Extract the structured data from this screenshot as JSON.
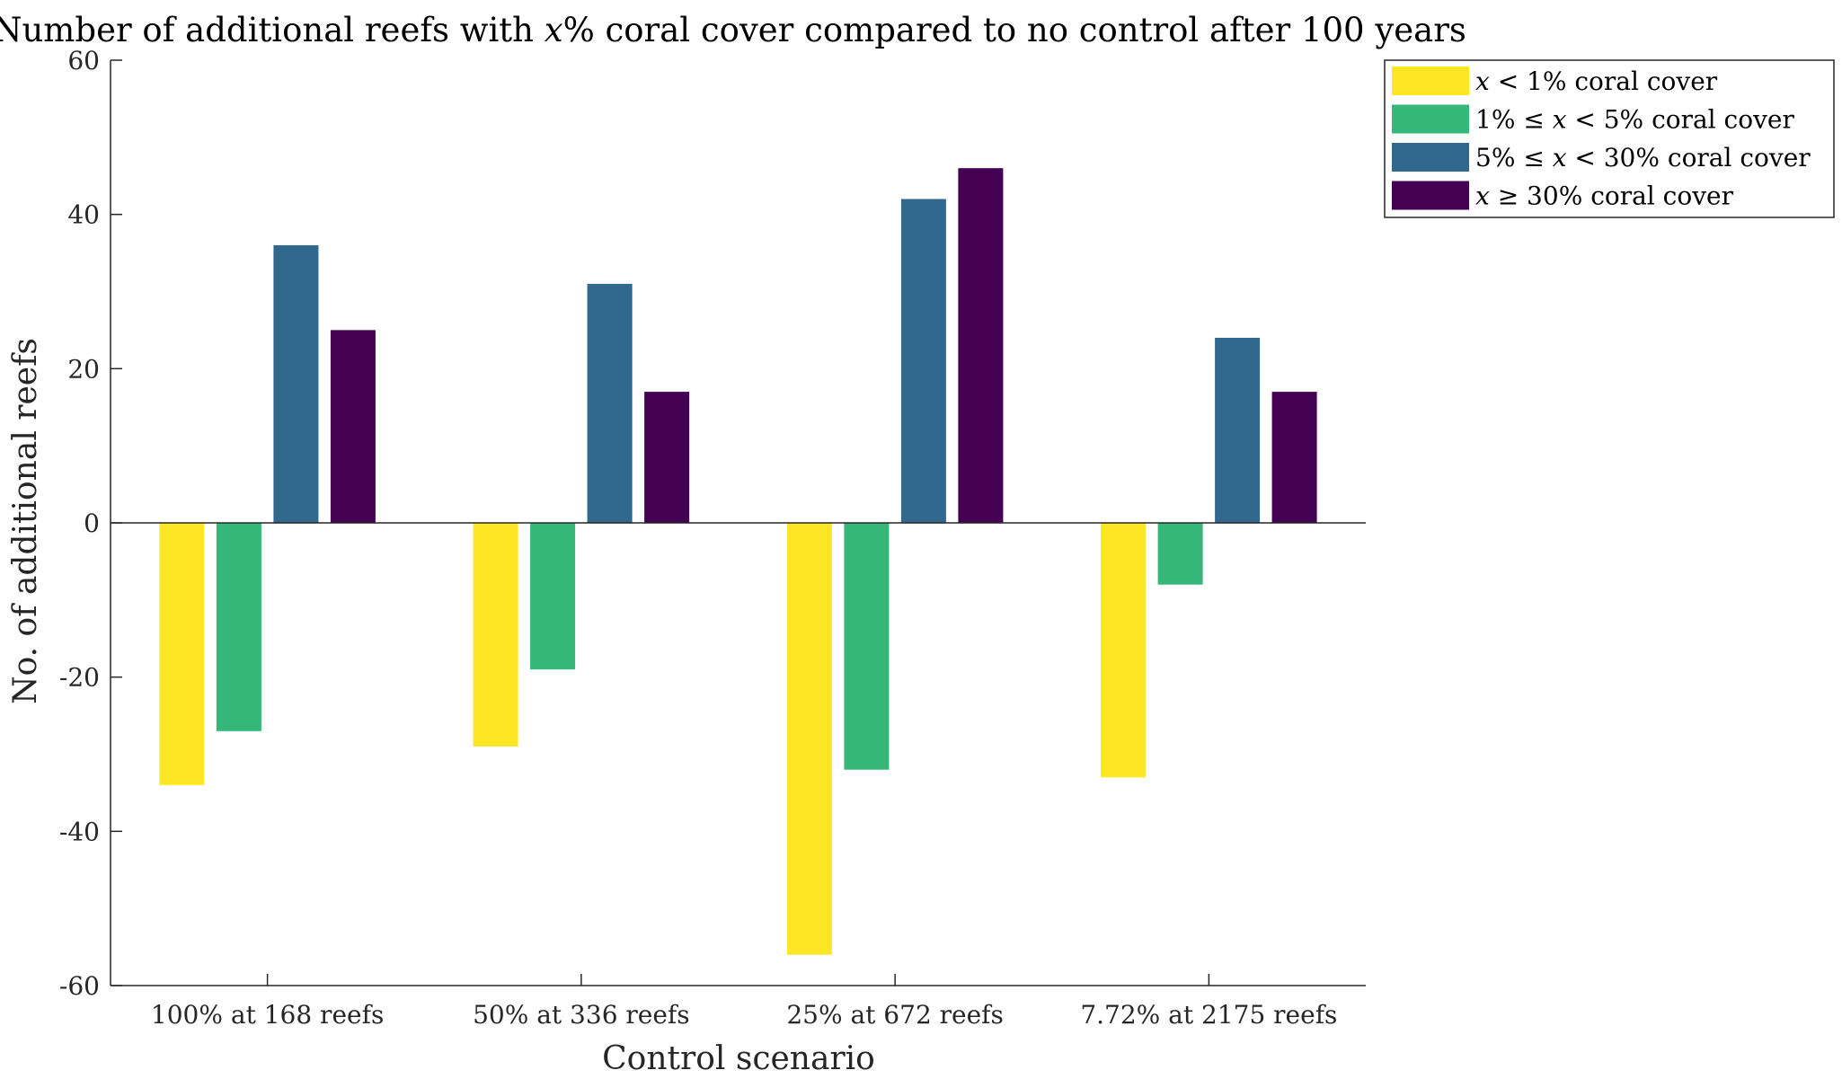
{
  "chart_data": {
    "type": "bar",
    "title": "Number of additional reefs with x% coral cover compared to no control after 100 years",
    "xlabel": "Control scenario",
    "ylabel": "No. of additional reefs",
    "ylim": [
      -60,
      60
    ],
    "yticks": [
      -60,
      -40,
      -20,
      0,
      20,
      40,
      60
    ],
    "categories": [
      "100% at 168 reefs",
      "50% at 336 reefs",
      "25% at 672 reefs",
      "7.72% at 2175 reefs"
    ],
    "series": [
      {
        "name": "x < 1% coral cover",
        "color": "#fde725",
        "values": [
          -34,
          -29,
          -56,
          -33
        ]
      },
      {
        "name": "1% ≤ x < 5% coral cover",
        "color": "#35b779",
        "values": [
          -27,
          -19,
          -32,
          -8
        ]
      },
      {
        "name": "5% ≤ x < 30% coral cover",
        "color": "#31688e",
        "values": [
          36,
          31,
          42,
          24
        ]
      },
      {
        "name": "x ≥ 30% coral cover",
        "color": "#440154",
        "values": [
          25,
          17,
          46,
          17
        ]
      }
    ],
    "legend_position": "outside-top-right",
    "grid": false
  }
}
